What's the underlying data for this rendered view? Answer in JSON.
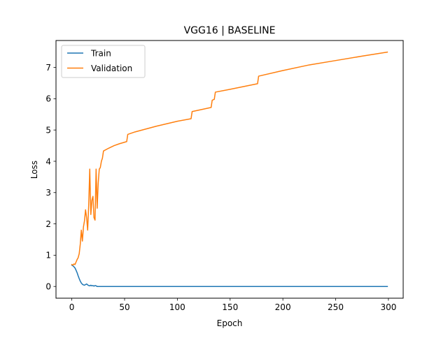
{
  "chart_data": {
    "type": "line",
    "title": "VGG16 | BASELINE",
    "xlabel": "Epoch",
    "ylabel": "Loss",
    "xlim": [
      -15,
      314
    ],
    "ylim": [
      -0.375,
      7.86
    ],
    "xticks": [
      0,
      50,
      100,
      150,
      200,
      250,
      300
    ],
    "yticks": [
      0,
      1,
      2,
      3,
      4,
      5,
      6,
      7
    ],
    "grid": false,
    "legend_position": "upper-left",
    "series": [
      {
        "name": "Train",
        "color": "#1f77b4",
        "points": [
          [
            0,
            0.68
          ],
          [
            1,
            0.66
          ],
          [
            2,
            0.63
          ],
          [
            3,
            0.59
          ],
          [
            4,
            0.52
          ],
          [
            5,
            0.44
          ],
          [
            6,
            0.34
          ],
          [
            7,
            0.25
          ],
          [
            8,
            0.17
          ],
          [
            9,
            0.11
          ],
          [
            10,
            0.07
          ],
          [
            11,
            0.05
          ],
          [
            12,
            0.04
          ],
          [
            13,
            0.06
          ],
          [
            14,
            0.08
          ],
          [
            15,
            0.05
          ],
          [
            16,
            0.03
          ],
          [
            17,
            0.02
          ],
          [
            18,
            0.04
          ],
          [
            19,
            0.02
          ],
          [
            20,
            0.03
          ],
          [
            21,
            0.01
          ],
          [
            22,
            0.03
          ],
          [
            23,
            0.02
          ],
          [
            24,
            0.0
          ],
          [
            30,
            0.0
          ],
          [
            50,
            0.0
          ],
          [
            100,
            0.0
          ],
          [
            150,
            0.0
          ],
          [
            200,
            0.0
          ],
          [
            250,
            0.0
          ],
          [
            299,
            0.0
          ]
        ]
      },
      {
        "name": "Validation",
        "color": "#ff7f0e",
        "points": [
          [
            0,
            0.7
          ],
          [
            1,
            0.68
          ],
          [
            2,
            0.72
          ],
          [
            3,
            0.7
          ],
          [
            4,
            0.78
          ],
          [
            5,
            0.86
          ],
          [
            6,
            0.92
          ],
          [
            7,
            1.05
          ],
          [
            8,
            1.35
          ],
          [
            9,
            1.8
          ],
          [
            10,
            1.45
          ],
          [
            11,
            1.9
          ],
          [
            12,
            2.1
          ],
          [
            13,
            2.45
          ],
          [
            14,
            2.2
          ],
          [
            15,
            1.8
          ],
          [
            16,
            2.6
          ],
          [
            17,
            3.75
          ],
          [
            18,
            2.3
          ],
          [
            19,
            2.75
          ],
          [
            20,
            2.88
          ],
          [
            21,
            2.2
          ],
          [
            22,
            2.12
          ],
          [
            23,
            3.75
          ],
          [
            24,
            2.5
          ],
          [
            25,
            3.3
          ],
          [
            26,
            3.75
          ],
          [
            27,
            3.8
          ],
          [
            28,
            4.0
          ],
          [
            29,
            4.1
          ],
          [
            30,
            4.33
          ],
          [
            35,
            4.42
          ],
          [
            40,
            4.5
          ],
          [
            45,
            4.56
          ],
          [
            52,
            4.63
          ],
          [
            53,
            4.86
          ],
          [
            60,
            4.94
          ],
          [
            80,
            5.12
          ],
          [
            100,
            5.28
          ],
          [
            113,
            5.36
          ],
          [
            114,
            5.59
          ],
          [
            132,
            5.72
          ],
          [
            133,
            5.95
          ],
          [
            135,
            5.98
          ],
          [
            136,
            6.21
          ],
          [
            150,
            6.3
          ],
          [
            176,
            6.48
          ],
          [
            177,
            6.72
          ],
          [
            200,
            6.9
          ],
          [
            225,
            7.08
          ],
          [
            250,
            7.22
          ],
          [
            275,
            7.36
          ],
          [
            299,
            7.49
          ]
        ]
      }
    ]
  }
}
